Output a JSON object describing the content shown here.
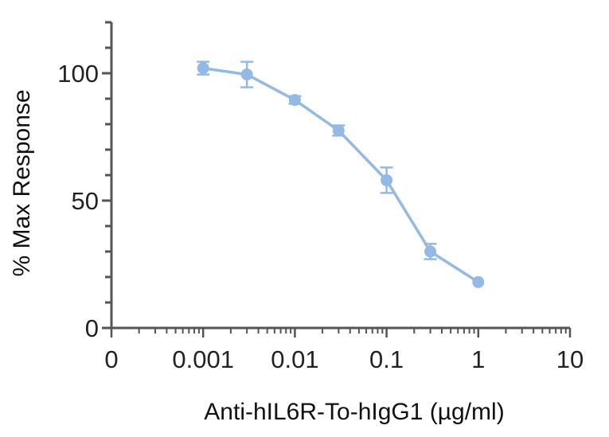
{
  "chart_data": {
    "type": "line",
    "xlabel": "Anti-hIL6R-To-hIgG1 (µg/ml)",
    "ylabel": "% Max  Response",
    "x_scale": "log",
    "xlim": [
      0.0001,
      10
    ],
    "ylim": [
      0,
      120
    ],
    "x_tick_labels": [
      "0",
      "0.001",
      "0.01",
      "0.1",
      "1",
      "10"
    ],
    "x_tick_values": [
      0.0001,
      0.001,
      0.01,
      0.1,
      1,
      10
    ],
    "y_tick_labels": [
      "0",
      "50",
      "100"
    ],
    "y_tick_values": [
      0,
      50,
      100
    ],
    "series": [
      {
        "x": [
          0.001,
          0.003,
          0.01,
          0.03,
          0.1,
          0.3,
          1
        ],
        "y": [
          102,
          99.5,
          89.5,
          77.5,
          58,
          30,
          18
        ],
        "error": [
          2.5,
          5,
          1.5,
          2,
          5,
          3,
          0
        ]
      }
    ],
    "colors": {
      "series": "#94b9e4",
      "axis": "#555555"
    },
    "grid": false
  }
}
